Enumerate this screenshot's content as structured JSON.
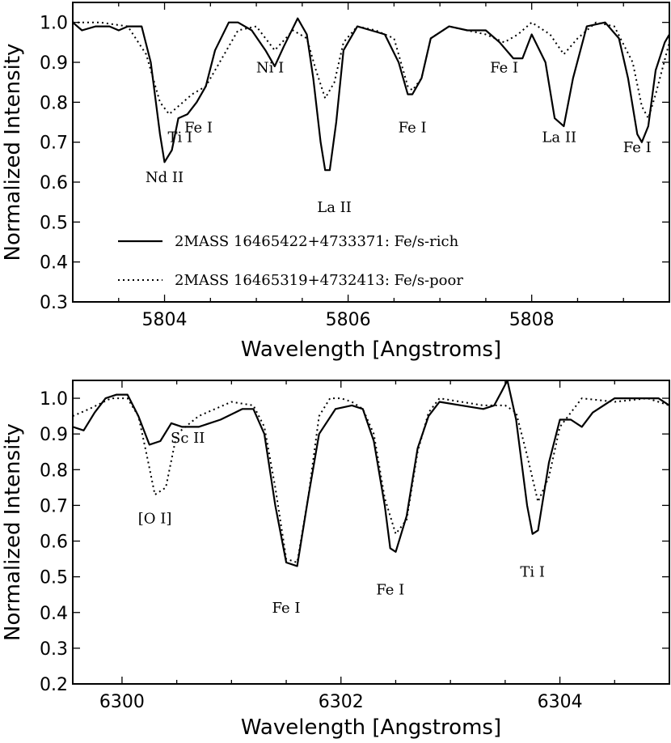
{
  "chart_data": [
    {
      "type": "line",
      "xlabel": "Wavelength [Angstroms]",
      "ylabel": "Normalized Intensity",
      "xlim": [
        5803.0,
        5809.5
      ],
      "ylim": [
        0.3,
        1.05
      ],
      "xticks": [
        5804,
        5806,
        5808
      ],
      "xtick_labels": [
        "5804",
        "5806",
        "5808"
      ],
      "yticks": [
        0.3,
        0.4,
        0.5,
        0.6,
        0.7,
        0.8,
        0.9,
        1.0
      ],
      "ytick_labels": [
        "0.3",
        "0.4",
        "0.5",
        "0.6",
        "0.7",
        "0.8",
        "0.9",
        "1.0"
      ],
      "legend": {
        "placement": "lower-left",
        "entries": [
          {
            "label": "2MASS 16465422+4733371: Fe/s-rich",
            "style": "solid"
          },
          {
            "label": "2MASS 16465319+4732413: Fe/s-poor",
            "style": "dotted"
          }
        ]
      },
      "series": [
        {
          "name": "2MASS 16465422+4733371: Fe/s-rich",
          "style": "solid",
          "x": [
            5803.0,
            5803.1,
            5803.25,
            5803.4,
            5803.5,
            5803.6,
            5803.75,
            5803.85,
            5803.95,
            5804.0,
            5804.08,
            5804.15,
            5804.25,
            5804.35,
            5804.45,
            5804.55,
            5804.7,
            5804.8,
            5804.95,
            5805.1,
            5805.2,
            5805.3,
            5805.45,
            5805.55,
            5805.62,
            5805.7,
            5805.75,
            5805.8,
            5805.87,
            5805.95,
            5806.1,
            5806.25,
            5806.4,
            5806.55,
            5806.65,
            5806.7,
            5806.8,
            5806.9,
            5807.1,
            5807.3,
            5807.5,
            5807.65,
            5807.8,
            5807.9,
            5808.0,
            5808.15,
            5808.25,
            5808.35,
            5808.45,
            5808.6,
            5808.8,
            5808.95,
            5809.05,
            5809.15,
            5809.2,
            5809.27,
            5809.35,
            5809.45,
            5809.5
          ],
          "y": [
            1.0,
            0.98,
            0.99,
            0.99,
            0.98,
            0.99,
            0.99,
            0.9,
            0.72,
            0.65,
            0.68,
            0.76,
            0.77,
            0.8,
            0.84,
            0.93,
            1.0,
            1.0,
            0.98,
            0.93,
            0.89,
            0.94,
            1.01,
            0.97,
            0.86,
            0.7,
            0.63,
            0.63,
            0.75,
            0.93,
            0.99,
            0.98,
            0.97,
            0.9,
            0.82,
            0.82,
            0.86,
            0.96,
            0.99,
            0.98,
            0.98,
            0.95,
            0.91,
            0.91,
            0.97,
            0.9,
            0.76,
            0.74,
            0.86,
            0.99,
            1.0,
            0.96,
            0.86,
            0.72,
            0.7,
            0.74,
            0.88,
            0.95,
            0.97
          ]
        },
        {
          "name": "2MASS 16465319+4732413: Fe/s-poor",
          "style": "dotted",
          "x": [
            5803.0,
            5803.3,
            5803.6,
            5803.8,
            5803.95,
            5804.05,
            5804.15,
            5804.3,
            5804.45,
            5804.6,
            5804.8,
            5805.0,
            5805.2,
            5805.4,
            5805.55,
            5805.65,
            5805.75,
            5805.85,
            5805.95,
            5806.1,
            5806.3,
            5806.5,
            5806.65,
            5806.7,
            5806.8,
            5806.9,
            5807.1,
            5807.5,
            5807.7,
            5807.85,
            5808.0,
            5808.2,
            5808.35,
            5808.5,
            5808.7,
            5808.9,
            5809.1,
            5809.2,
            5809.27,
            5809.35,
            5809.5
          ],
          "y": [
            1.0,
            1.0,
            0.99,
            0.92,
            0.8,
            0.77,
            0.79,
            0.82,
            0.84,
            0.9,
            0.98,
            0.99,
            0.93,
            0.98,
            0.96,
            0.88,
            0.81,
            0.85,
            0.95,
            0.99,
            0.98,
            0.96,
            0.84,
            0.83,
            0.86,
            0.96,
            0.99,
            0.97,
            0.95,
            0.97,
            1.0,
            0.97,
            0.92,
            0.96,
            1.0,
            0.99,
            0.9,
            0.79,
            0.76,
            0.82,
            0.95
          ]
        }
      ],
      "annotations": [
        {
          "text": "Nd II",
          "x": 5804.0,
          "y": 0.6
        },
        {
          "text": "Ti I",
          "x": 5804.17,
          "y": 0.7
        },
        {
          "text": "Fe I",
          "x": 5804.37,
          "y": 0.725
        },
        {
          "text": "Ni I",
          "x": 5805.15,
          "y": 0.875
        },
        {
          "text": "La II",
          "x": 5805.85,
          "y": 0.525
        },
        {
          "text": "Fe I",
          "x": 5806.7,
          "y": 0.725
        },
        {
          "text": "Fe I",
          "x": 5807.7,
          "y": 0.875
        },
        {
          "text": "La II",
          "x": 5808.3,
          "y": 0.7
        },
        {
          "text": "Fe I",
          "x": 5809.15,
          "y": 0.675
        }
      ]
    },
    {
      "type": "line",
      "xlabel": "Wavelength [Angstroms]",
      "ylabel": "Normalized Intensity",
      "xlim": [
        6299.55,
        6305.0
      ],
      "ylim": [
        0.2,
        1.05
      ],
      "xticks": [
        6300,
        6302,
        6304
      ],
      "xtick_labels": [
        "6300",
        "6302",
        "6304"
      ],
      "yticks": [
        0.2,
        0.3,
        0.4,
        0.5,
        0.6,
        0.7,
        0.8,
        0.9,
        1.0
      ],
      "ytick_labels": [
        "0.2",
        "0.3",
        "0.4",
        "0.5",
        "0.6",
        "0.7",
        "0.8",
        "0.9",
        "1.0"
      ],
      "series": [
        {
          "name": "2MASS 16465422+4733371: Fe/s-rich",
          "style": "solid",
          "x": [
            6299.55,
            6299.65,
            6299.75,
            6299.85,
            6299.95,
            6300.05,
            6300.15,
            6300.25,
            6300.35,
            6300.45,
            6300.55,
            6300.7,
            6300.9,
            6301.1,
            6301.2,
            6301.3,
            6301.4,
            6301.5,
            6301.6,
            6301.7,
            6301.8,
            6301.95,
            6302.1,
            6302.2,
            6302.3,
            6302.4,
            6302.45,
            6302.5,
            6302.6,
            6302.7,
            6302.8,
            6302.9,
            6303.1,
            6303.3,
            6303.4,
            6303.47,
            6303.52,
            6303.6,
            6303.7,
            6303.75,
            6303.8,
            6303.9,
            6304.0,
            6304.1,
            6304.2,
            6304.3,
            6304.5,
            6304.7,
            6304.9,
            6305.0
          ],
          "y": [
            0.92,
            0.91,
            0.96,
            1.0,
            1.01,
            1.01,
            0.95,
            0.87,
            0.88,
            0.93,
            0.92,
            0.92,
            0.94,
            0.97,
            0.97,
            0.9,
            0.7,
            0.54,
            0.53,
            0.72,
            0.9,
            0.97,
            0.98,
            0.97,
            0.88,
            0.7,
            0.58,
            0.57,
            0.67,
            0.86,
            0.95,
            0.99,
            0.98,
            0.97,
            0.98,
            1.02,
            1.05,
            0.94,
            0.7,
            0.62,
            0.63,
            0.82,
            0.94,
            0.94,
            0.92,
            0.96,
            1.0,
            1.0,
            1.0,
            0.98
          ]
        },
        {
          "name": "2MASS 16465319+4732413: Fe/s-poor",
          "style": "dotted",
          "x": [
            6299.55,
            6299.7,
            6299.9,
            6300.05,
            6300.15,
            6300.22,
            6300.3,
            6300.4,
            6300.5,
            6300.7,
            6301.0,
            6301.2,
            6301.3,
            6301.4,
            6301.5,
            6301.6,
            6301.7,
            6301.8,
            6301.9,
            6302.0,
            6302.1,
            6302.2,
            6302.3,
            6302.4,
            6302.5,
            6302.6,
            6302.7,
            6302.8,
            6302.9,
            6303.1,
            6303.3,
            6303.5,
            6303.6,
            6303.7,
            6303.8,
            6303.9,
            6304.0,
            6304.2,
            6304.5,
            6304.8,
            6305.0
          ],
          "y": [
            0.95,
            0.97,
            1.0,
            1.0,
            0.95,
            0.85,
            0.73,
            0.75,
            0.9,
            0.95,
            0.99,
            0.98,
            0.92,
            0.75,
            0.55,
            0.54,
            0.72,
            0.95,
            1.0,
            1.0,
            0.99,
            0.97,
            0.9,
            0.72,
            0.62,
            0.66,
            0.85,
            0.96,
            1.0,
            0.99,
            0.98,
            0.98,
            0.96,
            0.84,
            0.71,
            0.78,
            0.92,
            1.0,
            0.99,
            1.0,
            0.98
          ]
        }
      ],
      "annotations": [
        {
          "text": "Sc II",
          "x": 6300.6,
          "y": 0.875
        },
        {
          "text": "[O I]",
          "x": 6300.3,
          "y": 0.65
        },
        {
          "text": "Fe I",
          "x": 6301.5,
          "y": 0.4
        },
        {
          "text": "Fe I",
          "x": 6302.45,
          "y": 0.45
        },
        {
          "text": "Ti I",
          "x": 6303.75,
          "y": 0.5
        }
      ]
    }
  ]
}
